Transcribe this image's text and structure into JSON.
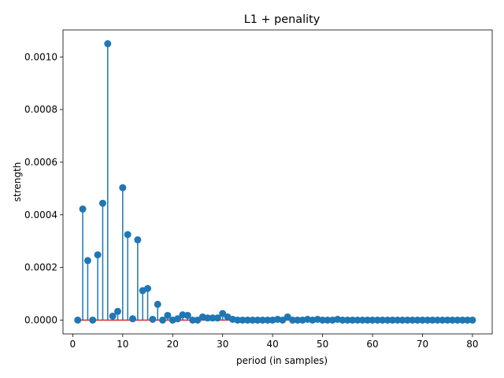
{
  "chart_data": {
    "type": "stem",
    "title": "L1 + penality",
    "xlabel": "period (in samples)",
    "ylabel": "strength",
    "xlim": [
      -1.95,
      83.95
    ],
    "ylim": [
      -5.25e-05,
      0.0011025
    ],
    "xticks": [
      0,
      10,
      20,
      30,
      40,
      50,
      60,
      70,
      80
    ],
    "xtick_labels": [
      "0",
      "10",
      "20",
      "30",
      "40",
      "50",
      "60",
      "70",
      "80"
    ],
    "yticks": [
      0,
      0.0002,
      0.0004,
      0.0006,
      0.0008,
      0.001
    ],
    "ytick_labels": [
      "0.0000",
      "0.0002",
      "0.0004",
      "0.0006",
      "0.0008",
      "0.0010"
    ],
    "grid": false,
    "colors": {
      "stem": "#1f77b4",
      "marker": "#1f77b4",
      "baseline": "#d62728"
    },
    "x": [
      1,
      2,
      3,
      4,
      5,
      6,
      7,
      8,
      9,
      10,
      11,
      12,
      13,
      14,
      15,
      16,
      17,
      18,
      19,
      20,
      21,
      22,
      23,
      24,
      25,
      26,
      27,
      28,
      29,
      30,
      31,
      32,
      33,
      34,
      35,
      36,
      37,
      38,
      39,
      40,
      41,
      42,
      43,
      44,
      45,
      46,
      47,
      48,
      49,
      50,
      51,
      52,
      53,
      54,
      55,
      56,
      57,
      58,
      59,
      60,
      61,
      62,
      63,
      64,
      65,
      66,
      67,
      68,
      69,
      70,
      71,
      72,
      73,
      74,
      75,
      76,
      77,
      78,
      79,
      80
    ],
    "values": [
      0.0,
      0.000422,
      0.000226,
      0.0,
      0.000248,
      0.000444,
      0.00105,
      1.5e-05,
      3.3e-05,
      0.000503,
      0.000325,
      5e-06,
      0.000305,
      0.000112,
      0.00012,
      3e-06,
      6e-05,
      0.0,
      1.8e-05,
      0.0,
      5e-06,
      2e-05,
      1.8e-05,
      0.0,
      0.0,
      1.2e-05,
      8e-06,
      8e-06,
      8e-06,
      2.5e-05,
      1.2e-05,
      3e-06,
      0.0,
      0.0,
      0.0,
      0.0,
      0.0,
      0.0,
      0.0,
      0.0,
      3e-06,
      0.0,
      1.2e-05,
      0.0,
      0.0,
      0.0,
      3e-06,
      0.0,
      3e-06,
      0.0,
      0.0,
      0.0,
      3e-06,
      0.0,
      0.0,
      0.0,
      0.0,
      0.0,
      0.0,
      0.0,
      0.0,
      0.0,
      0.0,
      0.0,
      0.0,
      0.0,
      0.0,
      0.0,
      0.0,
      0.0,
      0.0,
      0.0,
      0.0,
      0.0,
      0.0,
      0.0,
      0.0,
      0.0,
      0.0,
      0.0
    ]
  }
}
